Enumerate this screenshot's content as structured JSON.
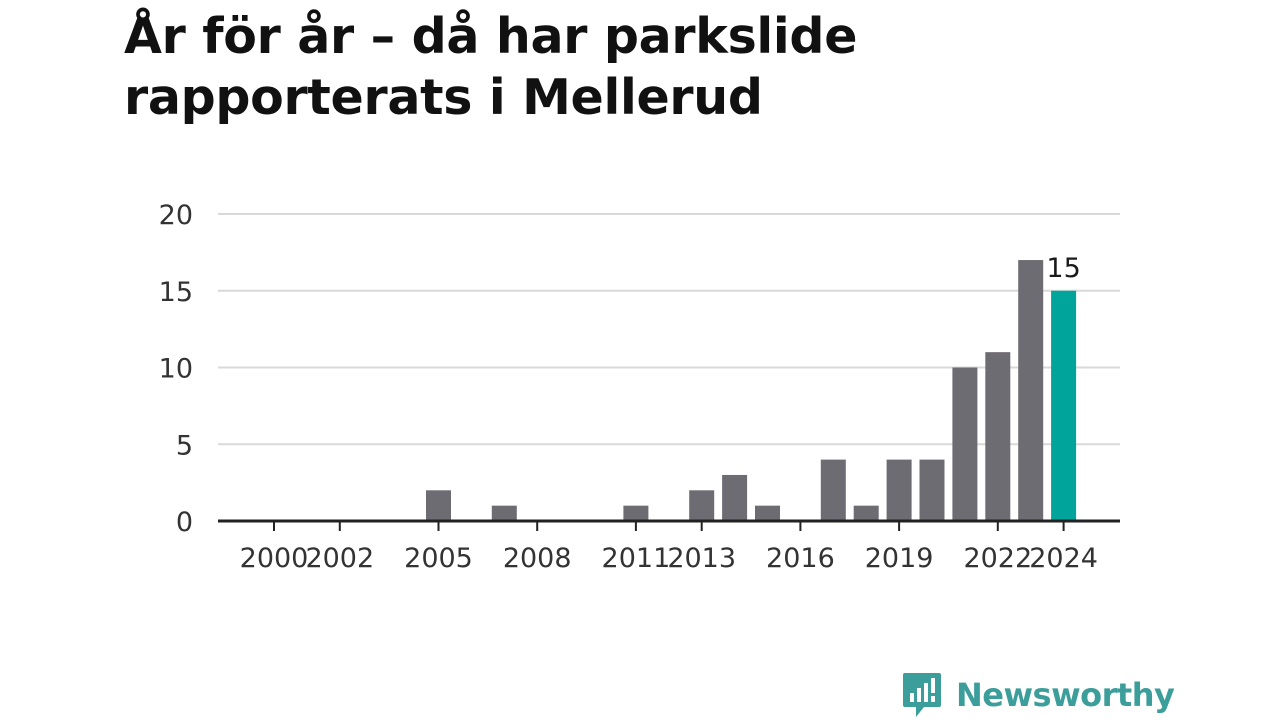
{
  "title": "År för år – då har parkslide rapporterats i Mellerud",
  "brand": {
    "name": "Newsworthy",
    "logo_icon": "newsworthy-logo-icon"
  },
  "colors": {
    "bar": "#6e6c73",
    "highlight": "#00a49b",
    "grid": "#d9d9d9",
    "axis": "#222222",
    "brand": "#3c9e9a"
  },
  "chart_data": {
    "type": "bar",
    "title": "År för år – då har parkslide rapporterats i Mellerud",
    "xlabel": "",
    "ylabel": "",
    "x": [
      2000,
      2001,
      2002,
      2003,
      2004,
      2005,
      2006,
      2007,
      2008,
      2009,
      2010,
      2011,
      2012,
      2013,
      2014,
      2015,
      2016,
      2017,
      2018,
      2019,
      2020,
      2021,
      2022,
      2023,
      2024
    ],
    "values": [
      0,
      0,
      0,
      0,
      0,
      2,
      0,
      1,
      0,
      0,
      0,
      1,
      0,
      2,
      3,
      1,
      0,
      4,
      1,
      4,
      4,
      10,
      11,
      17,
      15
    ],
    "x_tick_labels": [
      "2000",
      "2002",
      "2005",
      "2008",
      "2011",
      "2013",
      "2016",
      "2019",
      "2022",
      "2024"
    ],
    "y_ticks": [
      0,
      5,
      10,
      15,
      20
    ],
    "ylim": [
      0,
      20
    ],
    "highlight": {
      "x": 2024,
      "value": 15,
      "label": "15"
    },
    "grid": true
  }
}
